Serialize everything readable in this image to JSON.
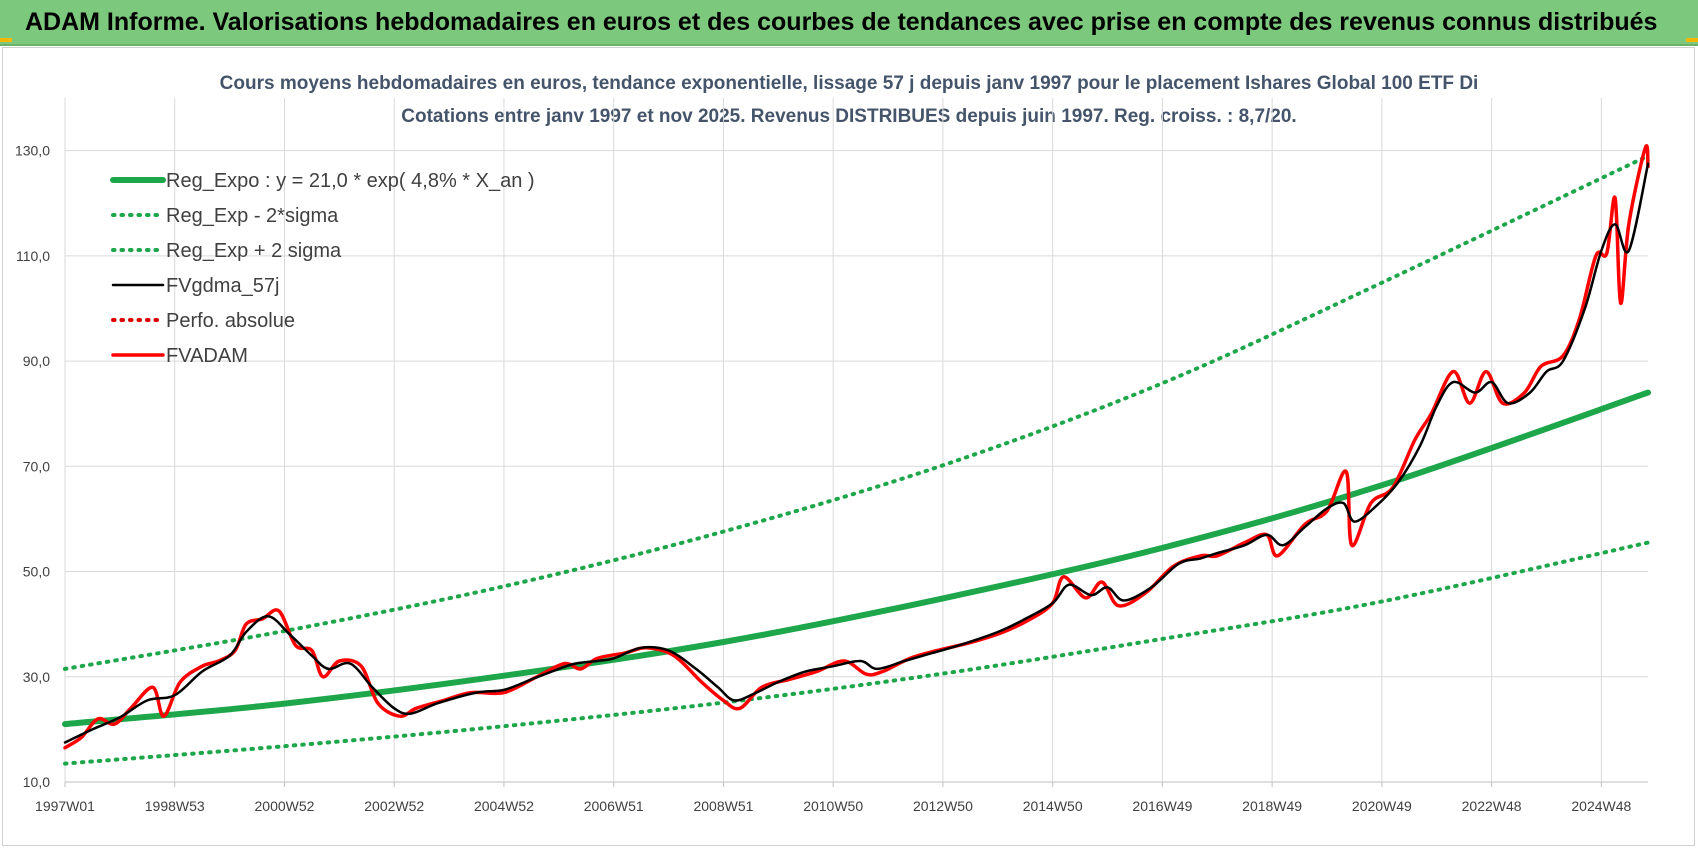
{
  "banner": {
    "title": "ADAM Informe. Valorisations hebdomadaires en euros et des courbes de tendances avec prise en compte des revenus connus distribués"
  },
  "chart_data": {
    "type": "line",
    "title_line1": "Cours moyens hebdomadaires en euros, tendance exponentielle, lissage 57 j depuis janv 1997  pour le placement Ishares Global 100 ETF Di",
    "title_line2": "Cotations entre janv 1997 et nov 2025. Revenus DISTRIBUES depuis juin 1997. Reg.  croiss. : 8,7/20.",
    "xlabel": "",
    "ylabel": "",
    "x_range": [
      1997.0,
      2025.85
    ],
    "ylim": [
      10,
      140
    ],
    "y_ticks": [
      10,
      30,
      50,
      70,
      90,
      110,
      130
    ],
    "y_tick_labels": [
      "10,0",
      "30,0",
      "50,0",
      "70,0",
      "90,0",
      "110,0",
      "130,0"
    ],
    "x_ticks": [
      {
        "x": 1997.0,
        "label": "1997W01"
      },
      {
        "x": 1999.0,
        "label": "1998W53"
      },
      {
        "x": 2001.0,
        "label": "2000W52"
      },
      {
        "x": 2003.0,
        "label": "2002W52"
      },
      {
        "x": 2005.0,
        "label": "2004W52"
      },
      {
        "x": 2007.0,
        "label": "2006W51"
      },
      {
        "x": 2009.0,
        "label": "2008W51"
      },
      {
        "x": 2011.0,
        "label": "2010W50"
      },
      {
        "x": 2013.0,
        "label": "2012W50"
      },
      {
        "x": 2015.0,
        "label": "2014W50"
      },
      {
        "x": 2017.0,
        "label": "2016W49"
      },
      {
        "x": 2019.0,
        "label": "2018W49"
      },
      {
        "x": 2021.0,
        "label": "2020W49"
      },
      {
        "x": 2023.0,
        "label": "2022W48"
      },
      {
        "x": 2025.0,
        "label": "2024W48"
      }
    ],
    "grid": true,
    "legend_position": "top-left",
    "series": [
      {
        "name": "Reg_Expo : y = 21,0 * exp( 4,8% *  X_an )",
        "color": "#1ea64b",
        "style": "solid-thick",
        "points": [
          [
            1997.0,
            21.0
          ],
          [
            2001.0,
            24.9
          ],
          [
            2005.0,
            30.2
          ],
          [
            2009.0,
            36.6
          ],
          [
            2013.0,
            44.9
          ],
          [
            2017.0,
            54.5
          ],
          [
            2021.0,
            66.4
          ],
          [
            2025.85,
            84.0
          ]
        ]
      },
      {
        "name": "Reg_Exp - 2*sigma",
        "color": "#1ea64b",
        "style": "dotted",
        "points": [
          [
            1997.0,
            13.5
          ],
          [
            2001.0,
            16.8
          ],
          [
            2005.0,
            20.6
          ],
          [
            2009.0,
            25.1
          ],
          [
            2013.0,
            30.6
          ],
          [
            2017.0,
            37.2
          ],
          [
            2021.0,
            44.3
          ],
          [
            2025.85,
            55.5
          ]
        ]
      },
      {
        "name": "Reg_Exp + 2 sigma",
        "color": "#1ea64b",
        "style": "dotted",
        "points": [
          [
            1997.0,
            31.5
          ],
          [
            2001.0,
            38.7
          ],
          [
            2005.0,
            47.2
          ],
          [
            2009.0,
            57.6
          ],
          [
            2013.0,
            70.2
          ],
          [
            2017.0,
            85.8
          ],
          [
            2021.0,
            104.9
          ],
          [
            2025.85,
            129.0
          ]
        ]
      },
      {
        "name": "FVgdma_57j",
        "color": "#000000",
        "style": "solid",
        "points": [
          [
            1997.0,
            17.5
          ],
          [
            1997.5,
            20.0
          ],
          [
            1998.0,
            22.3
          ],
          [
            1998.5,
            25.5
          ],
          [
            1999.0,
            26.5
          ],
          [
            1999.5,
            31.0
          ],
          [
            2000.0,
            34.0
          ],
          [
            2000.3,
            38.5
          ],
          [
            2000.7,
            41.5
          ],
          [
            2001.1,
            38.0
          ],
          [
            2001.5,
            34.0
          ],
          [
            2001.8,
            31.5
          ],
          [
            2002.2,
            32.5
          ],
          [
            2002.6,
            28.0
          ],
          [
            2003.0,
            24.0
          ],
          [
            2003.3,
            23.0
          ],
          [
            2003.8,
            25.0
          ],
          [
            2004.5,
            27.0
          ],
          [
            2005.0,
            27.5
          ],
          [
            2005.5,
            29.5
          ],
          [
            2006.0,
            31.5
          ],
          [
            2006.3,
            32.5
          ],
          [
            2006.7,
            33.0
          ],
          [
            2007.0,
            33.5
          ],
          [
            2007.5,
            35.5
          ],
          [
            2008.0,
            35.0
          ],
          [
            2008.5,
            31.5
          ],
          [
            2008.9,
            28.0
          ],
          [
            2009.2,
            25.5
          ],
          [
            2009.6,
            27.0
          ],
          [
            2010.0,
            29.0
          ],
          [
            2010.5,
            31.0
          ],
          [
            2011.0,
            32.0
          ],
          [
            2011.5,
            33.0
          ],
          [
            2011.8,
            31.5
          ],
          [
            2012.3,
            33.0
          ],
          [
            2012.8,
            34.5
          ],
          [
            2013.3,
            36.0
          ],
          [
            2014.0,
            38.5
          ],
          [
            2014.5,
            41.0
          ],
          [
            2015.0,
            44.0
          ],
          [
            2015.3,
            47.5
          ],
          [
            2015.7,
            45.5
          ],
          [
            2016.0,
            47.0
          ],
          [
            2016.3,
            44.5
          ],
          [
            2016.8,
            47.0
          ],
          [
            2017.3,
            51.5
          ],
          [
            2017.7,
            52.5
          ],
          [
            2018.0,
            53.5
          ],
          [
            2018.5,
            55.0
          ],
          [
            2018.9,
            57.0
          ],
          [
            2019.2,
            55.0
          ],
          [
            2019.6,
            58.5
          ],
          [
            2020.0,
            62.0
          ],
          [
            2020.3,
            63.0
          ],
          [
            2020.5,
            59.5
          ],
          [
            2020.9,
            62.5
          ],
          [
            2021.3,
            67.0
          ],
          [
            2021.7,
            74.0
          ],
          [
            2022.0,
            81.5
          ],
          [
            2022.3,
            86.0
          ],
          [
            2022.7,
            84.0
          ],
          [
            2023.0,
            86.0
          ],
          [
            2023.3,
            82.0
          ],
          [
            2023.7,
            84.0
          ],
          [
            2024.0,
            88.0
          ],
          [
            2024.3,
            90.0
          ],
          [
            2024.7,
            100.0
          ],
          [
            2025.0,
            111.0
          ],
          [
            2025.25,
            116.0
          ],
          [
            2025.5,
            111.0
          ],
          [
            2025.85,
            127.5
          ]
        ]
      },
      {
        "name": "Perfo. absolue",
        "color": "#e00000",
        "style": "dotted",
        "points": []
      },
      {
        "name": "FVADAM",
        "color": "#ff0000",
        "style": "solid-thick",
        "points": [
          [
            1997.0,
            16.5
          ],
          [
            1997.3,
            18.5
          ],
          [
            1997.6,
            22.0
          ],
          [
            1997.9,
            21.0
          ],
          [
            1998.2,
            24.0
          ],
          [
            1998.6,
            28.0
          ],
          [
            1998.8,
            22.5
          ],
          [
            1999.1,
            29.0
          ],
          [
            1999.5,
            32.0
          ],
          [
            1999.8,
            33.0
          ],
          [
            2000.1,
            35.0
          ],
          [
            2000.3,
            40.0
          ],
          [
            2000.6,
            41.0
          ],
          [
            2000.9,
            42.5
          ],
          [
            2001.2,
            36.0
          ],
          [
            2001.5,
            35.0
          ],
          [
            2001.7,
            30.0
          ],
          [
            2002.0,
            33.0
          ],
          [
            2002.4,
            32.0
          ],
          [
            2002.7,
            25.0
          ],
          [
            2003.1,
            22.5
          ],
          [
            2003.4,
            24.0
          ],
          [
            2003.9,
            25.5
          ],
          [
            2004.4,
            27.0
          ],
          [
            2005.0,
            27.0
          ],
          [
            2005.6,
            30.0
          ],
          [
            2006.1,
            32.5
          ],
          [
            2006.4,
            31.5
          ],
          [
            2006.7,
            33.5
          ],
          [
            2007.2,
            34.5
          ],
          [
            2007.6,
            35.5
          ],
          [
            2008.1,
            34.0
          ],
          [
            2008.6,
            29.0
          ],
          [
            2009.0,
            25.5
          ],
          [
            2009.3,
            24.0
          ],
          [
            2009.7,
            28.0
          ],
          [
            2010.2,
            29.5
          ],
          [
            2010.7,
            31.0
          ],
          [
            2011.2,
            33.0
          ],
          [
            2011.6,
            30.5
          ],
          [
            2011.9,
            31.0
          ],
          [
            2012.4,
            33.5
          ],
          [
            2012.9,
            35.0
          ],
          [
            2013.5,
            36.5
          ],
          [
            2014.1,
            38.5
          ],
          [
            2014.6,
            41.0
          ],
          [
            2015.0,
            44.0
          ],
          [
            2015.2,
            49.0
          ],
          [
            2015.6,
            45.0
          ],
          [
            2015.9,
            48.0
          ],
          [
            2016.2,
            43.5
          ],
          [
            2016.7,
            46.0
          ],
          [
            2017.2,
            51.0
          ],
          [
            2017.7,
            53.0
          ],
          [
            2018.0,
            53.0
          ],
          [
            2018.5,
            55.5
          ],
          [
            2018.9,
            57.0
          ],
          [
            2019.1,
            53.0
          ],
          [
            2019.6,
            59.0
          ],
          [
            2020.0,
            61.5
          ],
          [
            2020.35,
            69.0
          ],
          [
            2020.45,
            55.0
          ],
          [
            2020.8,
            63.0
          ],
          [
            2021.2,
            66.0
          ],
          [
            2021.6,
            75.0
          ],
          [
            2021.9,
            80.0
          ],
          [
            2022.3,
            88.0
          ],
          [
            2022.6,
            82.0
          ],
          [
            2022.9,
            88.0
          ],
          [
            2023.2,
            82.0
          ],
          [
            2023.6,
            84.0
          ],
          [
            2023.9,
            89.0
          ],
          [
            2024.3,
            91.0
          ],
          [
            2024.6,
            98.0
          ],
          [
            2024.9,
            110.0
          ],
          [
            2025.1,
            110.5
          ],
          [
            2025.25,
            121.0
          ],
          [
            2025.35,
            101.0
          ],
          [
            2025.5,
            116.0
          ],
          [
            2025.8,
            130.5
          ],
          [
            2025.85,
            127.0
          ]
        ]
      }
    ]
  }
}
